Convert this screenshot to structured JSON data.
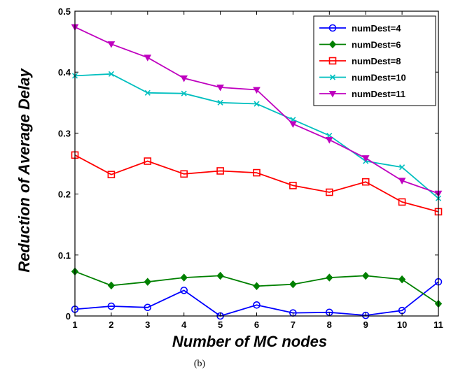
{
  "chart_data": {
    "type": "line",
    "caption": "(b)",
    "xlabel": "Number of MC nodes",
    "ylabel": "Reduction of Average Delay",
    "xlim": [
      1,
      11
    ],
    "ylim": [
      0,
      0.5
    ],
    "x_ticks": [
      1,
      2,
      3,
      4,
      5,
      6,
      7,
      8,
      9,
      10,
      11
    ],
    "y_ticks": [
      0,
      0.1,
      0.2,
      0.3,
      0.4,
      0.5
    ],
    "grid": false,
    "legend": "top-right",
    "x": [
      1,
      2,
      3,
      4,
      5,
      6,
      7,
      8,
      9,
      10,
      11
    ],
    "series": [
      {
        "name": "numDest=4",
        "color": "#0000ff",
        "marker": "circle",
        "values": [
          0.011,
          0.016,
          0.014,
          0.042,
          0.0,
          0.018,
          0.005,
          0.006,
          0.001,
          0.009,
          0.056
        ]
      },
      {
        "name": "numDest=6",
        "color": "#008000",
        "marker": "diamond",
        "values": [
          0.073,
          0.05,
          0.056,
          0.063,
          0.066,
          0.049,
          0.052,
          0.063,
          0.066,
          0.06,
          0.02
        ]
      },
      {
        "name": "numDest=8",
        "color": "#ff0000",
        "marker": "square",
        "values": [
          0.264,
          0.232,
          0.254,
          0.233,
          0.238,
          0.235,
          0.214,
          0.203,
          0.22,
          0.187,
          0.171
        ]
      },
      {
        "name": "numDest=10",
        "color": "#00bfbf",
        "marker": "x",
        "values": [
          0.394,
          0.397,
          0.366,
          0.365,
          0.35,
          0.348,
          0.322,
          0.296,
          0.254,
          0.244,
          0.193
        ]
      },
      {
        "name": "numDest=11",
        "color": "#bf00bf",
        "marker": "triangle-down",
        "values": [
          0.474,
          0.446,
          0.424,
          0.39,
          0.375,
          0.371,
          0.315,
          0.289,
          0.259,
          0.222,
          0.201
        ]
      }
    ]
  }
}
